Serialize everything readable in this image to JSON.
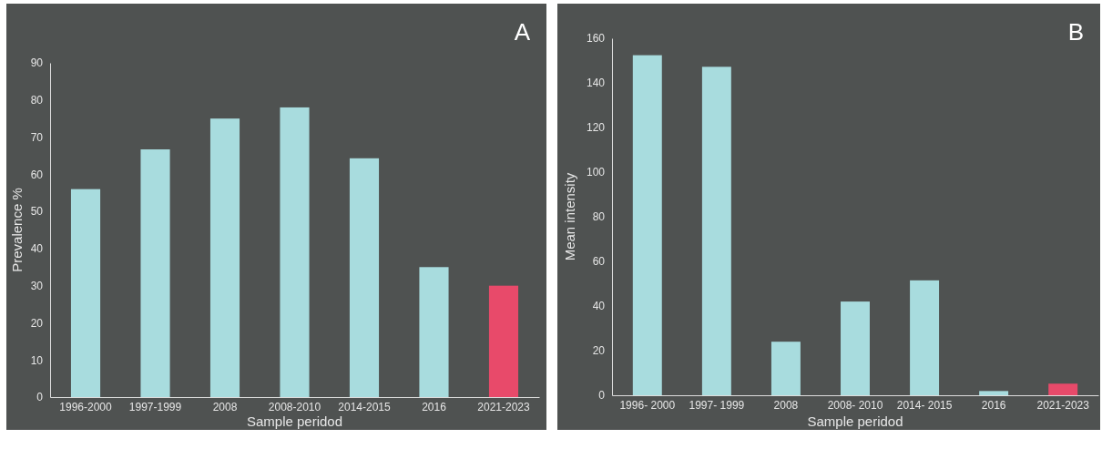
{
  "chart_data": [
    {
      "type": "bar",
      "title": "A",
      "xlabel": "Sample peridod",
      "ylabel": "Prevalence %",
      "categories": [
        "1996-2000",
        "1997-1999",
        "2008",
        "2008-2010",
        "2014-2015",
        "2016",
        "2021-2023"
      ],
      "values": [
        56,
        66.7,
        75,
        78,
        64.3,
        35,
        30
      ],
      "colors": [
        "#a8dcde",
        "#a8dcde",
        "#a8dcde",
        "#a8dcde",
        "#a8dcde",
        "#a8dcde",
        "#e84a6a"
      ],
      "ylim": [
        0,
        90
      ],
      "yticks": [
        0,
        10,
        20,
        30,
        40,
        50,
        60,
        70,
        80,
        90
      ],
      "grid": false
    },
    {
      "type": "bar",
      "title": "B",
      "xlabel": "Sample peridod",
      "ylabel": "Mean intensity",
      "categories": [
        "1996- 2000",
        "1997- 1999",
        "2008",
        "2008- 2010",
        "2014- 2015",
        "2016",
        "2021-2023"
      ],
      "values": [
        152.4,
        147.2,
        24,
        42,
        51.5,
        1.9,
        5.2
      ],
      "colors": [
        "#a8dcde",
        "#a8dcde",
        "#a8dcde",
        "#a8dcde",
        "#a8dcde",
        "#a8dcde",
        "#e84a6a"
      ],
      "ylim": [
        0,
        160
      ],
      "yticks": [
        0,
        20,
        40,
        60,
        80,
        100,
        120,
        140,
        160
      ],
      "grid": false
    }
  ]
}
